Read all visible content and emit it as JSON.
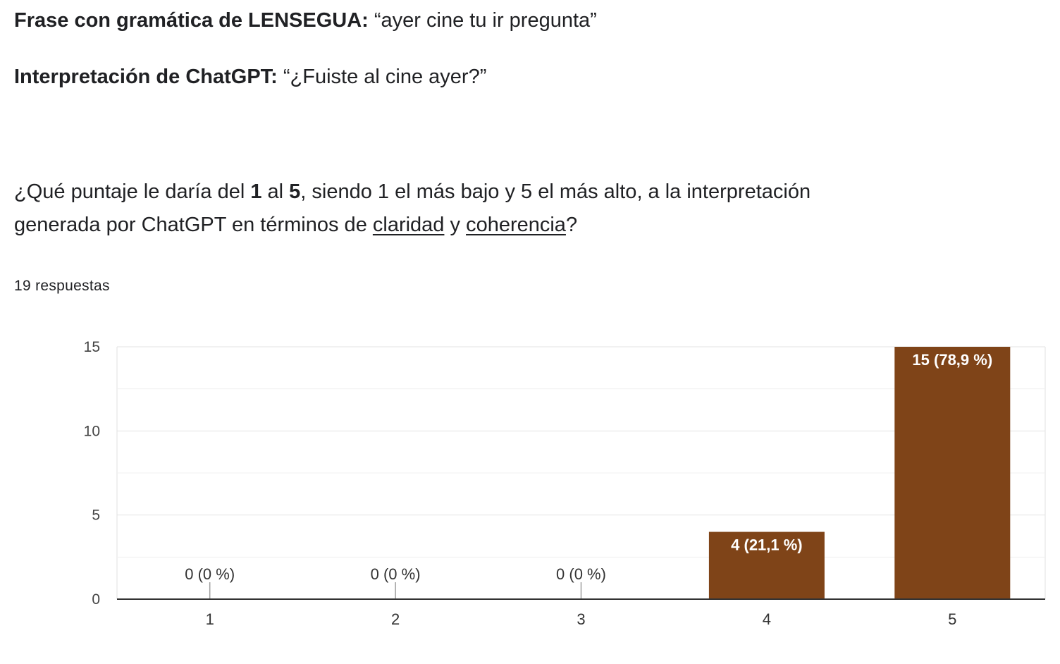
{
  "header": {
    "phrase_label": "Frase con gramática de LENSEGUA:",
    "phrase_value": "“ayer cine tu ir pregunta”",
    "interp_label": "Interpretación de ChatGPT:",
    "interp_value": "“¿Fuiste al cine ayer?”"
  },
  "question": {
    "part1": "¿Qué puntaje le daría del ",
    "bold1": "1",
    "part2": " al ",
    "bold2": "5",
    "part3": ", siendo 1 el más bajo y 5 el más alto, a la interpretación generada por ChatGPT en términos de ",
    "underline1": "claridad",
    "part4": " y ",
    "underline2": "coherencia",
    "part5": "?"
  },
  "responses_text": "19 respuestas",
  "chart_data": {
    "type": "bar",
    "categories": [
      "1",
      "2",
      "3",
      "4",
      "5"
    ],
    "values": [
      0,
      0,
      0,
      4,
      15
    ],
    "labels": [
      "0 (0 %)",
      "0 (0 %)",
      "0 (0 %)",
      "4 (21,1 %)",
      "15 (78,9 %)"
    ],
    "yticks": [
      0,
      5,
      10,
      15
    ],
    "ylim": [
      0,
      15
    ],
    "grid": true,
    "bar_color": "#7f4418",
    "title": "",
    "xlabel": "",
    "ylabel": ""
  }
}
